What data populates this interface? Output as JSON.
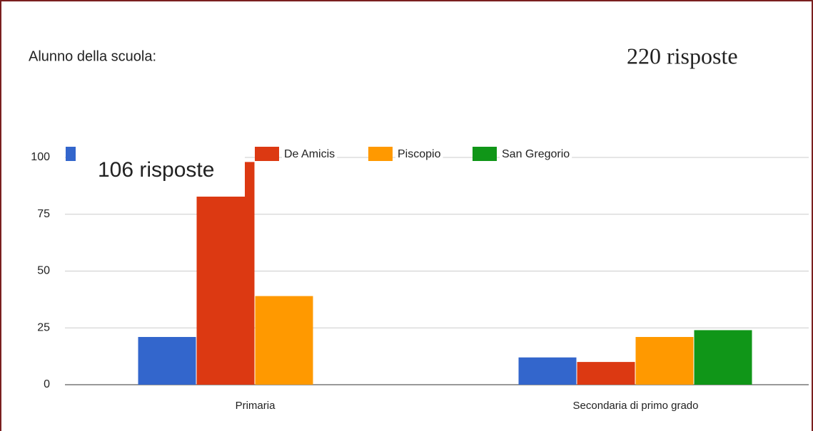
{
  "chart_data": {
    "type": "bar",
    "title": "Alunno della scuola:",
    "subtitle": "220 risposte",
    "annotation": "106 risposte",
    "categories": [
      "Primaria",
      "Secondaria di primo grado"
    ],
    "series": [
      {
        "name": null,
        "color": "#3366cc",
        "values": [
          21,
          12
        ]
      },
      {
        "name": "De Amicis",
        "color": "#dc3912",
        "values": [
          98,
          10
        ]
      },
      {
        "name": "Piscopio",
        "color": "#ff9900",
        "values": [
          39,
          21
        ]
      },
      {
        "name": "San Gregorio",
        "color": "#109618",
        "values": [
          0,
          24
        ]
      }
    ],
    "ylim": [
      0,
      100
    ],
    "yticks": [
      0,
      25,
      50,
      75,
      100
    ],
    "grid": true,
    "legend": "top"
  }
}
